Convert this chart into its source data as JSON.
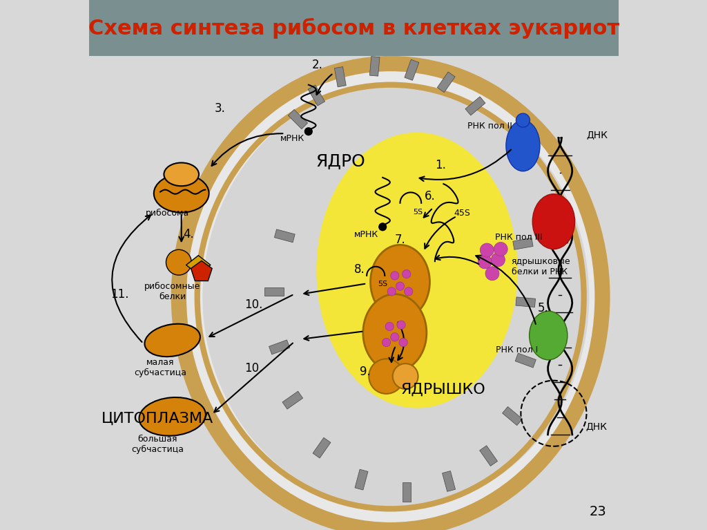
{
  "title": "Схема синтеза рибосом в клетках эукариот",
  "title_color": "#cc2200",
  "title_bg": "#7a9090",
  "bg_color": "#d8d8d8",
  "white_bg": "#ffffff",
  "labels": {
    "title": "Схема синтеза рибосом в клетках эукариот",
    "yadro": "ЯДРО",
    "tsitoplazma": "ЦИТОПЛАЗМА",
    "yadrushko": "ЯДРЫШКО",
    "ribosoma": "рибосома",
    "ribos_belki": "рибосомные\nбелки",
    "malaya": "малая\nсубчастица",
    "bolshaya": "большая\nсубчастица",
    "mrna1": "мРНК",
    "mrna2": "мРНК",
    "rnk_pol2": "РНК пол II",
    "rnk_pol3": "РНК пол III",
    "rnk_pol1": "РНК пол I",
    "dnk1": "ДНК",
    "dnk2": "ДНК",
    "5s_label1": "5S",
    "5s_label2": "5S",
    "45s_label": "45S",
    "yadr_belki": "ядрышковые\nбелки и РНК",
    "num1": "1.",
    "num2": "2.",
    "num3": "3.",
    "num4": "4.",
    "num5": "5.",
    "num6": "6.",
    "num7": "7.",
    "num8": "8.",
    "num9": "9.",
    "num10a": "10.",
    "num10b": "10.",
    "num11": "11.",
    "page_num": "23"
  },
  "rnk_pol2_color": "#2255cc",
  "rnk_pol3_color": "#cc1111",
  "rnk_pol1_color": "#55aa33",
  "organelle_orange": "#d4820a",
  "organelle_light_orange": "#e8a030",
  "small_dots_color": "#cc44aa"
}
